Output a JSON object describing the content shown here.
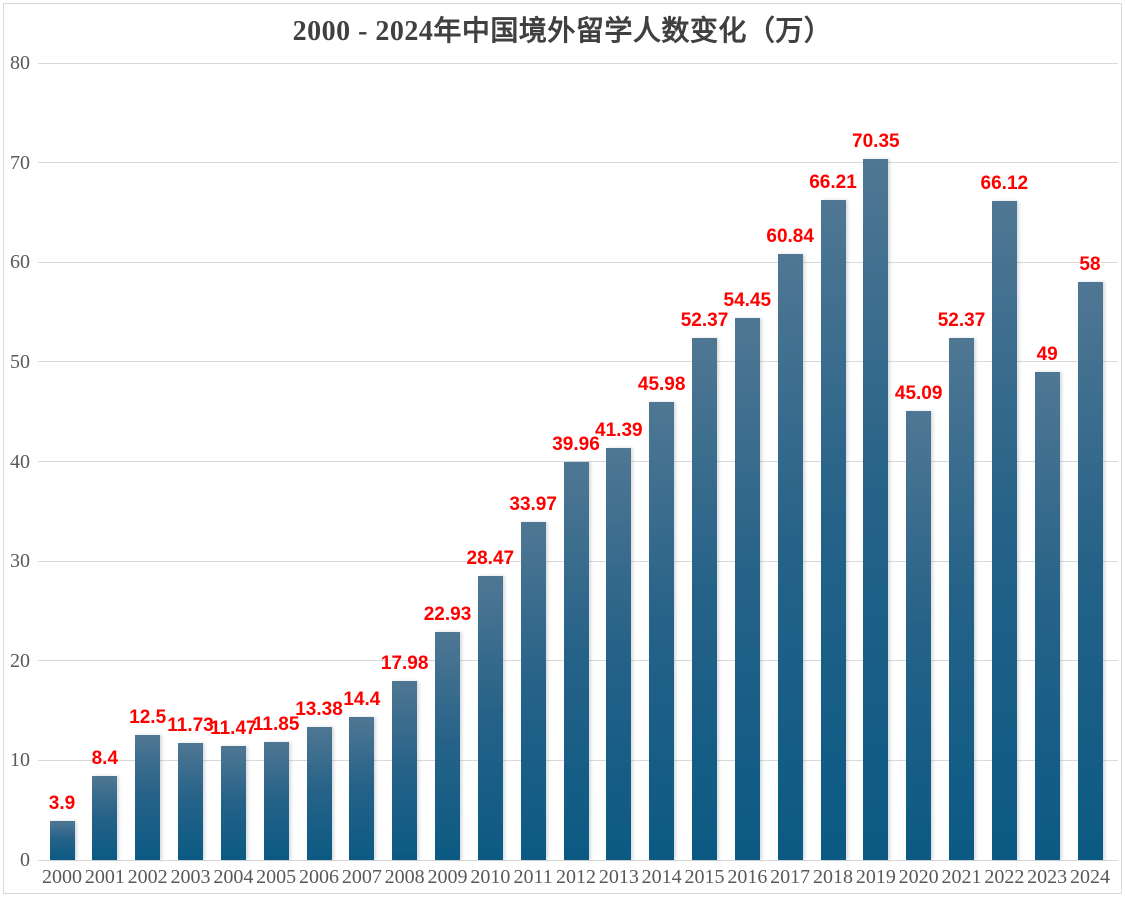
{
  "chart_data": {
    "type": "bar",
    "title": "2000 - 2024年中国境外留学人数变化（万）",
    "categories": [
      "2000",
      "2001",
      "2002",
      "2003",
      "2004",
      "2005",
      "2006",
      "2007",
      "2008",
      "2009",
      "2010",
      "2011",
      "2012",
      "2013",
      "2014",
      "2015",
      "2016",
      "2017",
      "2018",
      "2019",
      "2020",
      "2021",
      "2022",
      "2023",
      "2024"
    ],
    "values": [
      3.9,
      8.4,
      12.5,
      11.73,
      11.47,
      11.85,
      13.38,
      14.4,
      17.98,
      22.93,
      28.47,
      33.97,
      39.96,
      41.39,
      45.98,
      52.37,
      54.45,
      60.84,
      66.21,
      70.35,
      45.09,
      52.37,
      66.12,
      49,
      58
    ],
    "value_labels": [
      "3.9",
      "8.4",
      "12.5",
      "11.73",
      "11.47",
      "11.85",
      "13.38",
      "14.4",
      "17.98",
      "22.93",
      "28.47",
      "33.97",
      "39.96",
      "41.39",
      "45.98",
      "52.37",
      "54.45",
      "60.84",
      "66.21",
      "70.35",
      "45.09",
      "52.37",
      "66.12",
      "49",
      "58"
    ],
    "xlabel": "",
    "ylabel": "",
    "ylim": [
      0,
      80
    ],
    "yticks": [
      0,
      10,
      20,
      30,
      40,
      50,
      60,
      70,
      80
    ],
    "ytick_labels": [
      "0",
      "10",
      "20",
      "30",
      "40",
      "50",
      "60",
      "70",
      "80"
    ],
    "grid": true,
    "legend": "none",
    "colors": {
      "background": "#ffffff",
      "frame_border": "#d9d9d9",
      "title": "#404040",
      "axis_labels": "#595959",
      "value_labels": "#ff0000",
      "gridline": "#d9d9d9",
      "bar_gradient_top": "#4f7793",
      "bar_gradient_mid": "#266288",
      "bar_gradient_bottom": "#0b5a84"
    }
  }
}
